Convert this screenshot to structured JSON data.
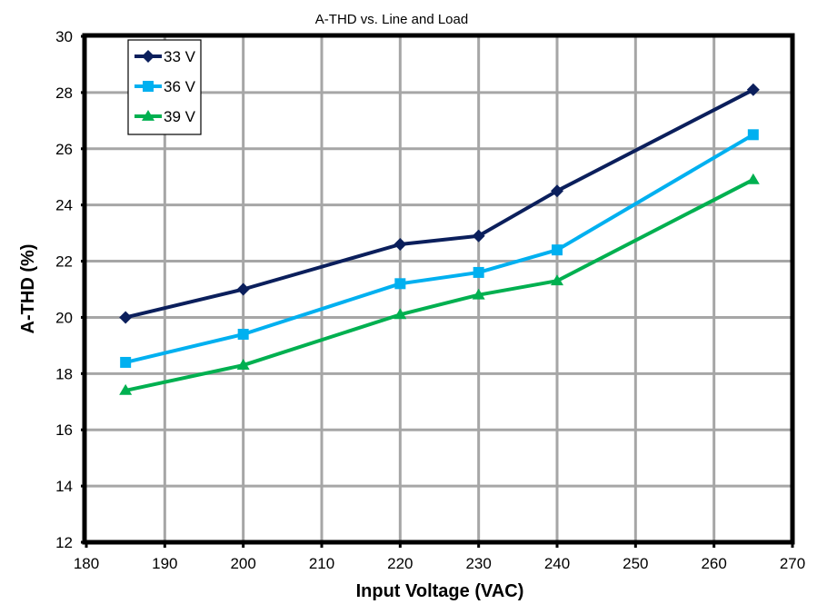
{
  "chart_data": {
    "type": "line",
    "title": "A-THD vs. Line and Load",
    "xlabel": "Input Voltage (VAC)",
    "ylabel": "A-THD (%)",
    "xlim": [
      180,
      270
    ],
    "ylim": [
      12,
      30
    ],
    "x_ticks": [
      180,
      190,
      200,
      210,
      220,
      230,
      240,
      250,
      260,
      270
    ],
    "x_tick_labels": [
      "180",
      "190",
      "200",
      "210",
      "220",
      "230",
      "240",
      "250",
      "260",
      "270"
    ],
    "y_ticks": [
      12,
      14,
      16,
      18,
      20,
      22,
      24,
      26,
      28,
      30
    ],
    "y_tick_labels": [
      "12",
      "14",
      "16",
      "18",
      "20",
      "22",
      "24",
      "26",
      "28",
      "30"
    ],
    "grid": true,
    "legend_position": "top-left",
    "x": [
      185,
      200,
      220,
      230,
      240,
      265
    ],
    "series": [
      {
        "name": "33 V",
        "color": "#0b1f5c",
        "marker": "diamond",
        "values": [
          20.0,
          21.0,
          22.6,
          22.9,
          24.5,
          28.1
        ]
      },
      {
        "name": "36 V",
        "color": "#00b0f0",
        "marker": "square",
        "values": [
          18.4,
          19.4,
          21.2,
          21.6,
          22.4,
          26.5
        ]
      },
      {
        "name": "39 V",
        "color": "#00b050",
        "marker": "triangle",
        "values": [
          17.4,
          18.3,
          20.1,
          20.8,
          21.3,
          24.9
        ]
      }
    ]
  }
}
